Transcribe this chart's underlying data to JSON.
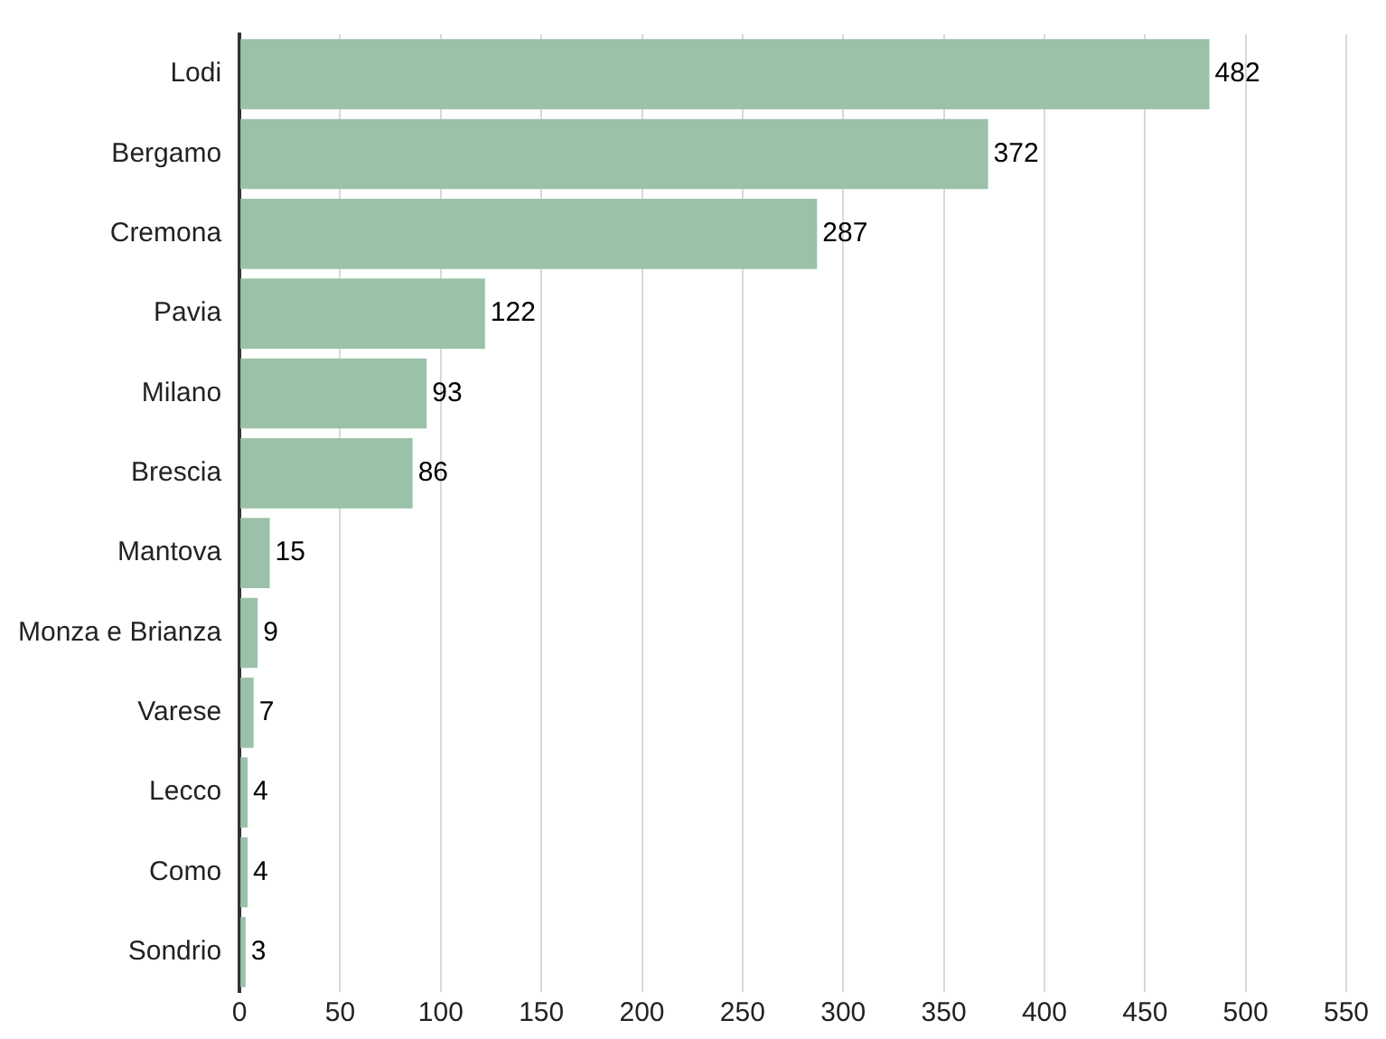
{
  "chart_data": {
    "type": "bar",
    "orientation": "horizontal",
    "categories": [
      "Lodi",
      "Bergamo",
      "Cremona",
      "Pavia",
      "Milano",
      "Brescia",
      "Mantova",
      "Monza e Brianza",
      "Varese",
      "Lecco",
      "Como",
      "Sondrio"
    ],
    "values": [
      482,
      372,
      287,
      122,
      93,
      86,
      15,
      9,
      7,
      4,
      4,
      3
    ],
    "color": "#9bc2a9",
    "xlim": [
      0,
      550
    ],
    "xticks": [
      0,
      50,
      100,
      150,
      200,
      250,
      300,
      350,
      400,
      450,
      500,
      550
    ],
    "grid": "x",
    "data_labels": true,
    "legend": false
  }
}
